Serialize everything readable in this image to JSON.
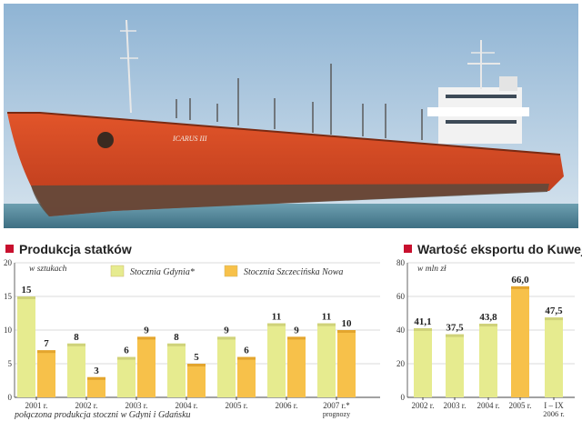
{
  "photo": {
    "ship_name": "ICARUS III"
  },
  "chart_data": [
    {
      "type": "bar",
      "title": "Produkcja statków",
      "unit_note": "w sztukach",
      "categories": [
        "2001 r.",
        "2002 r.",
        "2003 r.",
        "2004 r.",
        "2005 r.",
        "2006 r.",
        "2007 r.*"
      ],
      "category_sublabels": [
        "",
        "",
        "",
        "",
        "",
        "",
        "prognozy"
      ],
      "series": [
        {
          "name": "Stocznia Gdynia*",
          "values": [
            15,
            8,
            6,
            8,
            9,
            11,
            11
          ],
          "color": "#e6eb8f"
        },
        {
          "name": "Stocznia Szczecińska Nowa",
          "values": [
            7,
            3,
            9,
            5,
            6,
            9,
            10
          ],
          "color": "#f7c14a"
        }
      ],
      "ylim": [
        0,
        20
      ],
      "yticks": [
        "0",
        "5",
        "10",
        "15",
        "20"
      ],
      "footnote": "połączona produkcja stoczni w Gdyni i Gdańsku",
      "grid": true
    },
    {
      "type": "bar",
      "title": "Wartość eksportu do Kuwejtu",
      "unit_note": "w mln zł",
      "categories": [
        "2002 r.",
        "2003 r.",
        "2004 r.",
        "2005 r.",
        "I – IX"
      ],
      "category_sublabels": [
        "",
        "",
        "",
        "",
        "2006 r."
      ],
      "values": [
        41.1,
        37.5,
        43.8,
        66.0,
        47.5
      ],
      "value_labels": [
        "41,1",
        "37,5",
        "43,8",
        "66,0",
        "47,5"
      ],
      "ylim": [
        0,
        80
      ],
      "yticks": [
        "0",
        "20",
        "40",
        "60",
        "80"
      ],
      "colors": [
        "#e6eb8f",
        "#e6eb8f",
        "#e6eb8f",
        "#f7c14a",
        "#e6eb8f"
      ],
      "grid": true
    }
  ]
}
